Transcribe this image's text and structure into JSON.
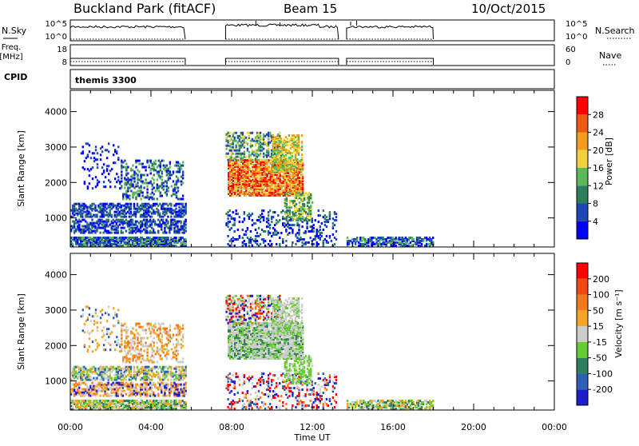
{
  "header": {
    "title": "Buckland Park (fitACF)",
    "beam": "Beam 15",
    "date": "10/Oct/2015"
  },
  "left_labels": {
    "nsky": "N.Sky",
    "freq": "Freq.",
    "freq_unit": "[MHz]",
    "cpid": "CPID"
  },
  "right_labels": {
    "nsearch": "N.Search",
    "nave": "Nave"
  },
  "tick_labels": {
    "noise_left": [
      "10^5",
      "10^0"
    ],
    "noise_right": [
      "10^5",
      "10^0"
    ],
    "freq_left": [
      "18",
      "8"
    ],
    "freq_right": [
      "60",
      "0"
    ]
  },
  "cpid_text": "themis 3300",
  "colors": {
    "power": [
      "#0000ff",
      "#1e46b4",
      "#2e7d5b",
      "#5cb85c",
      "#f4d03f",
      "#f59c1f",
      "#ee5a14",
      "#ff0000"
    ],
    "velocity": [
      "#1e1ec8",
      "#2e5fb4",
      "#2e7d5b",
      "#66cc33",
      "#cccccc",
      "#f4a522",
      "#f47820",
      "#f04a14",
      "#ff0000"
    ]
  },
  "chart_data": [
    {
      "type": "line",
      "name": "noise-panel",
      "ylabel": "N.Sky",
      "xlim": [
        0,
        24
      ],
      "segments": [
        [
          0,
          5.7
        ],
        [
          7.7,
          13.3
        ],
        [
          13.7,
          18
        ]
      ]
    },
    {
      "type": "line",
      "name": "frequency-panel",
      "ylabel": "Freq. [MHz]",
      "xlim": [
        0,
        24
      ],
      "segments": [
        [
          0,
          5.7
        ],
        [
          7.7,
          13.3
        ],
        [
          13.7,
          18
        ]
      ]
    },
    {
      "type": "heatmap",
      "name": "power-panel",
      "xlabel": "",
      "ylabel": "Slant Range [km]",
      "xlim": [
        0,
        24
      ],
      "ylim": [
        180,
        4600
      ],
      "yticks": [
        1000,
        2000,
        3000,
        4000
      ],
      "colorbar": {
        "label": "Power [dB]",
        "ticks": [
          "4",
          "8",
          "12",
          "16",
          "20",
          "24",
          "28"
        ],
        "range": [
          0,
          32
        ]
      }
    },
    {
      "type": "heatmap",
      "name": "velocity-panel",
      "xlabel": "Time UT",
      "ylabel": "Slant Range [km]",
      "xlim": [
        0,
        24
      ],
      "ylim": [
        180,
        4600
      ],
      "yticks": [
        1000,
        2000,
        3000,
        4000
      ],
      "xticks": [
        "00:00",
        "04:00",
        "08:00",
        "12:00",
        "16:00",
        "20:00",
        "00:00"
      ],
      "colorbar": {
        "label": "Velocity [m s⁻¹]",
        "ticks": [
          "200",
          "100",
          "50",
          "15",
          "-15",
          "-50",
          "-100",
          "-200"
        ]
      }
    }
  ]
}
